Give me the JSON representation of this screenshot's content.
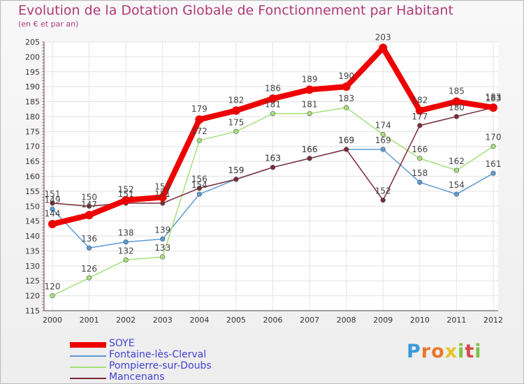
{
  "header": {
    "title": "Evolution de la Dotation Globale de Fonctionnement par Habitant",
    "subtitle": "(en € et par an)"
  },
  "chart_data": {
    "type": "line",
    "categories": [
      "2000",
      "2001",
      "2002",
      "2003",
      "2004",
      "2005",
      "2006",
      "2007",
      "2008",
      "2009",
      "2010",
      "2011",
      "2012"
    ],
    "ylim": [
      115,
      205
    ],
    "yticks": [
      115,
      120,
      125,
      130,
      135,
      140,
      145,
      150,
      155,
      160,
      165,
      170,
      175,
      180,
      185,
      190,
      195,
      200,
      205
    ],
    "grid": true,
    "legend_position": "bottom-left",
    "series": [
      {
        "name": "Fontaine-lès-Clerval",
        "color": "#5b9bd5",
        "values": [
          149,
          136,
          138,
          139,
          154,
          159,
          163,
          166,
          169,
          169,
          158,
          154,
          161
        ],
        "labels": [
          "149",
          "136",
          "138",
          "139",
          "154",
          "159",
          "163",
          "166",
          "169",
          "169",
          "158",
          "154",
          "161"
        ]
      },
      {
        "name": "Pompierre-sur-Doubs",
        "color": "#a6e07a",
        "values": [
          120,
          126,
          132,
          133,
          172,
          175,
          181,
          181,
          183,
          174,
          166,
          162,
          170
        ],
        "labels": [
          "120",
          "126",
          "132",
          "133",
          "172",
          "175",
          "181",
          "181",
          "183",
          "174",
          "166",
          "162",
          "170"
        ]
      },
      {
        "name": "Mancenans",
        "color": "#7a2a36",
        "values": [
          151,
          150,
          151,
          151,
          156,
          159,
          163,
          166,
          169,
          152,
          177,
          180,
          183
        ],
        "labels": [
          "151",
          "150",
          "151",
          "151",
          "156",
          "159",
          "163",
          "166",
          "169",
          "152",
          "177",
          "180",
          "183"
        ]
      },
      {
        "name": "SOYE",
        "color": "#ee0000",
        "values": [
          144,
          147,
          152,
          153,
          179,
          182,
          186,
          189,
          190,
          203,
          182,
          185,
          183
        ],
        "labels": [
          "144",
          "147",
          "152",
          "153",
          "179",
          "182",
          "186",
          "189",
          "190",
          "203",
          "182",
          "185",
          "183"
        ]
      }
    ],
    "legend_order": [
      "SOYE",
      "Fontaine-lès-Clerval",
      "Pompierre-sur-Doubs",
      "Mancenans"
    ]
  },
  "brand": {
    "logo_letters": [
      "P",
      "r",
      "o",
      "x",
      "i",
      "t",
      "i"
    ],
    "logo_colors": [
      "#3a9ad9",
      "#e8782a",
      "#e8782a",
      "#e8c22a",
      "#7cc242",
      "#d94a4a",
      "#7cc242"
    ]
  }
}
